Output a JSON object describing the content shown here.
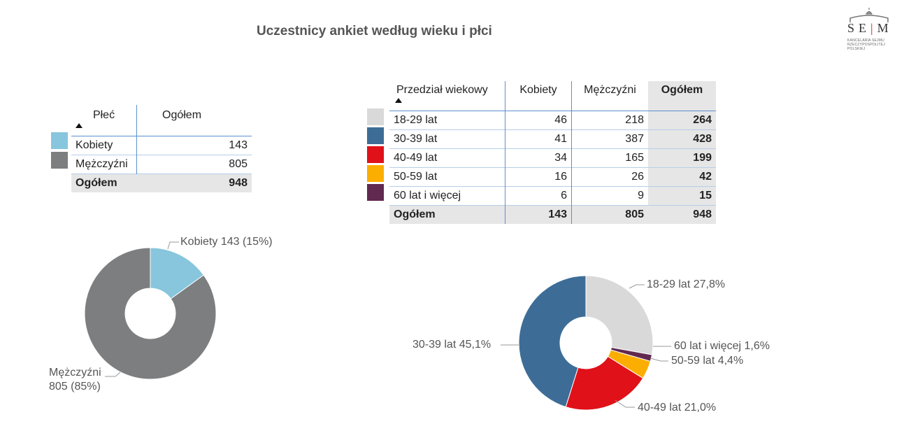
{
  "title": "Uczestnicy ankiet według wieku i płci",
  "logo": {
    "word_left": "SE",
    "word_bar": "|",
    "word_right": "M",
    "subtitle": "KANCELARIA SEJMU RZECZYPOSPOLITEJ POLSKIEJ"
  },
  "gender_table": {
    "headers": [
      "Płeć",
      "Ogółem"
    ],
    "rows": [
      {
        "label": "Kobiety",
        "value": "143",
        "color": "#87c6dd"
      },
      {
        "label": "Mężczyźni",
        "value": "805",
        "color": "#7d7e80"
      }
    ],
    "total": {
      "label": "Ogółem",
      "value": "948"
    }
  },
  "age_table": {
    "headers": [
      "Przedział wiekowy",
      "Kobiety",
      "Mężczyźni",
      "Ogółem"
    ],
    "rows": [
      {
        "label": "18-29 lat",
        "k": "46",
        "m": "218",
        "total": "264",
        "color": "#d9d9da"
      },
      {
        "label": "30-39 lat",
        "k": "41",
        "m": "387",
        "total": "428",
        "color": "#3d6d97"
      },
      {
        "label": "40-49 lat",
        "k": "34",
        "m": "165",
        "total": "199",
        "color": "#e01119"
      },
      {
        "label": "50-59 lat",
        "k": "16",
        "m": "26",
        "total": "42",
        "color": "#fcae00"
      },
      {
        "label": "60 lat i więcej",
        "k": "6",
        "m": "9",
        "total": "15",
        "color": "#61294f"
      }
    ],
    "total": {
      "label": "Ogółem",
      "k": "143",
      "m": "805",
      "total": "948"
    }
  },
  "chart_data": [
    {
      "type": "pie",
      "donut": true,
      "categories": [
        "Kobiety",
        "Mężczyźni"
      ],
      "values": [
        143,
        805
      ],
      "colors": [
        "#87c6dd",
        "#7d7e80"
      ],
      "labels": [
        "Kobiety 143 (15%)",
        "Mężczyźni 805 (85%)"
      ],
      "label_lines": [
        [
          "Kobiety 143 (15%)"
        ],
        [
          "Mężczyźni",
          "805 (85%)"
        ]
      ]
    },
    {
      "type": "pie",
      "donut": true,
      "categories": [
        "18-29 lat",
        "50-59 lat",
        "40-49 lat",
        "30-39 lat",
        "60 lat i więcej"
      ],
      "values": [
        27.8,
        4.4,
        21.0,
        45.1,
        1.6
      ],
      "slice_order": [
        "18-29 lat",
        "60 lat i więcej",
        "50-59 lat",
        "40-49 lat",
        "30-39 lat"
      ],
      "slice_values": [
        27.8,
        1.6,
        4.4,
        21.0,
        45.1
      ],
      "colors": [
        "#d9d9da",
        "#61294f",
        "#fcae00",
        "#e01119",
        "#3d6d97"
      ],
      "labels": [
        "18-29 lat 27,8%",
        "60 lat i więcej 1,6%",
        "50-59 lat 4,4%",
        "40-49 lat 21,0%",
        "30-39 lat 45,1%"
      ]
    }
  ]
}
